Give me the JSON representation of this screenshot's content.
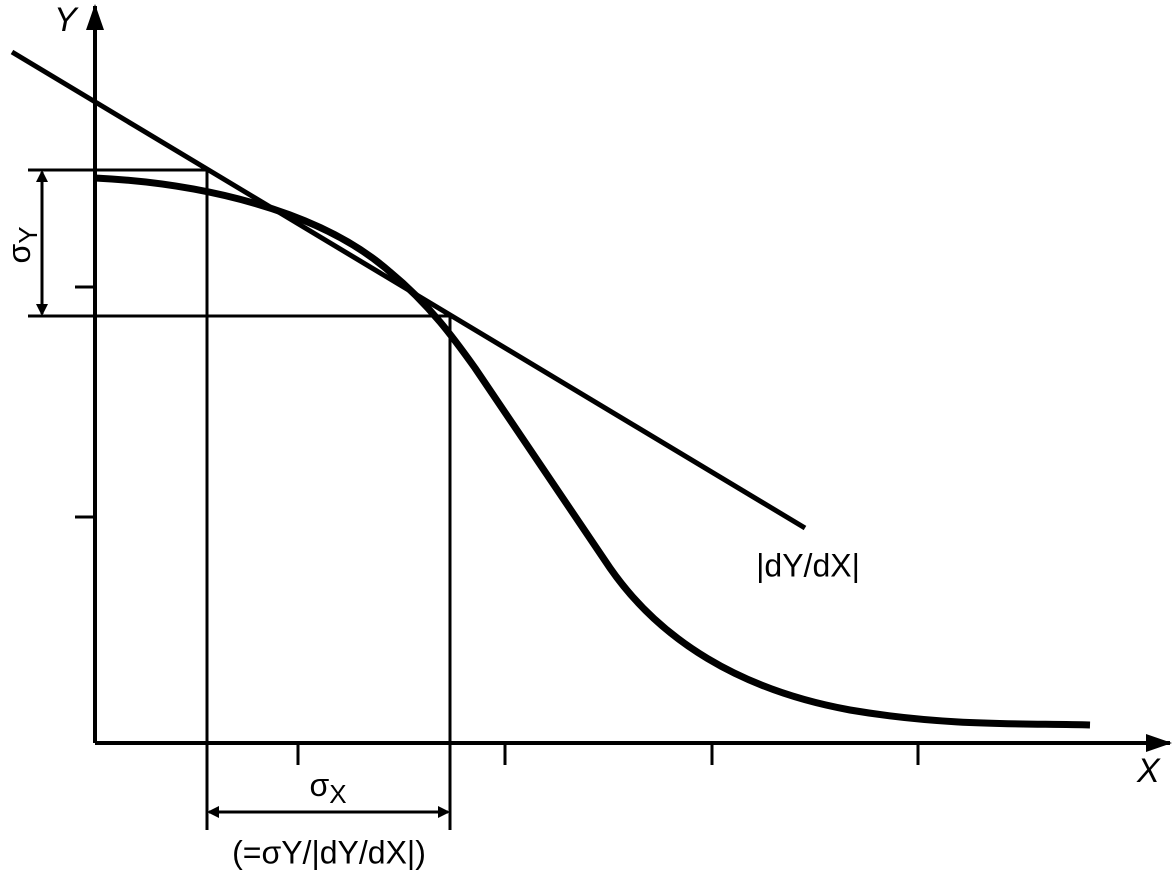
{
  "axes": {
    "y_label": "Y",
    "x_label": "X"
  },
  "labels": {
    "sigma_y": {
      "symbol": "σ",
      "subscript": "Y"
    },
    "sigma_x": {
      "symbol": "σ",
      "subscript": "X"
    },
    "sigma_x_formula": "(=σY/|dY/dX|)",
    "slope": "|dY/dX|"
  }
}
